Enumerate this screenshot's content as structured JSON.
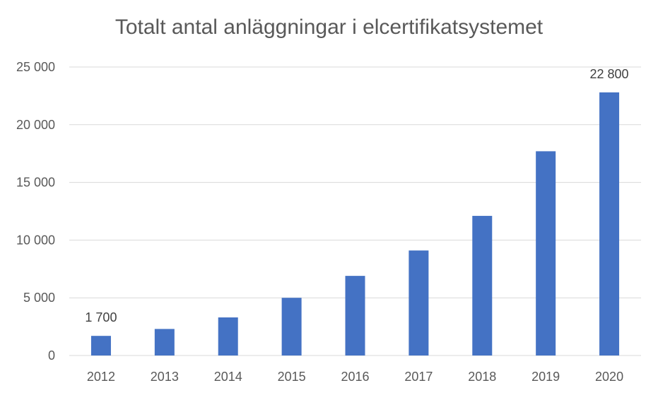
{
  "chart_data": {
    "type": "bar",
    "title": "Totalt antal anläggningar i elcertifikatsystemet",
    "categories": [
      "2012",
      "2013",
      "2014",
      "2015",
      "2016",
      "2017",
      "2018",
      "2019",
      "2020"
    ],
    "series": [
      {
        "values": [
          1700,
          2300,
          3300,
          5000,
          6900,
          9100,
          12100,
          17700,
          22800
        ]
      }
    ],
    "y_ticks": [
      "0",
      "5 000",
      "10 000",
      "15 000",
      "20 000",
      "25 000"
    ],
    "ylim": [
      0,
      25000
    ],
    "data_labels": [
      {
        "category": "2012",
        "text": "1 700"
      },
      {
        "category": "2020",
        "text": "22 800"
      }
    ],
    "grid": true,
    "legend": "none",
    "bar_color": "#4472C4",
    "grid_color": "#D9D9D9",
    "axis_text_color": "#595959",
    "title_color": "#595959"
  }
}
